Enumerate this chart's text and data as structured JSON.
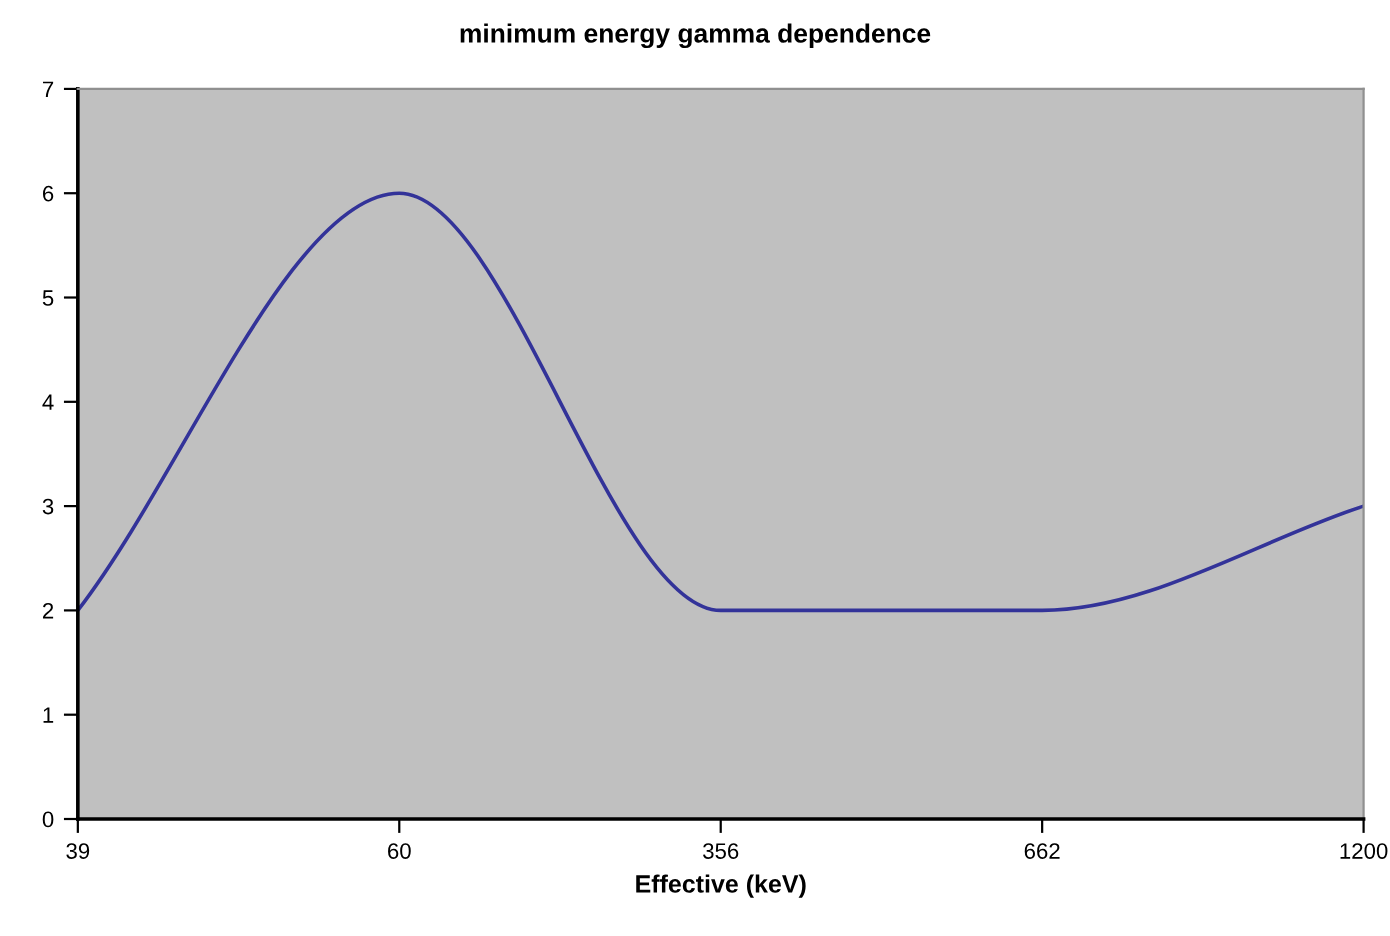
{
  "chart_data": {
    "type": "line",
    "title": "minimum energy gamma dependence",
    "xlabel": "Effective (keV)",
    "categories": [
      "39",
      "60",
      "356",
      "662",
      "1200"
    ],
    "series": [
      {
        "color": "#333399",
        "values": [
          2,
          6,
          2,
          2,
          3
        ]
      }
    ],
    "ylim": [
      0,
      7
    ],
    "yticks": [
      0,
      1,
      2,
      3,
      4,
      5,
      6,
      7
    ],
    "grid": false,
    "legend": false,
    "marker": "none",
    "line_style": "solid"
  }
}
